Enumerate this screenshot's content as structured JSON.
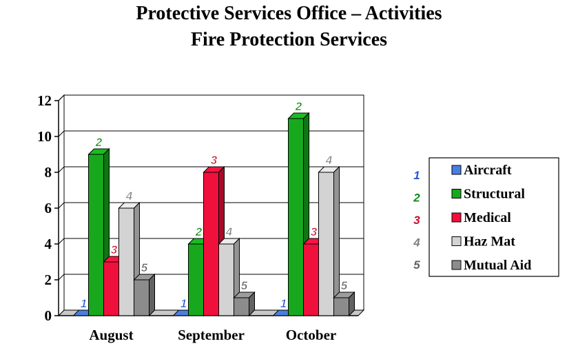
{
  "title": "Protective Services Office – Activities",
  "subtitle": "Fire Protection Services",
  "colors": {
    "background": "#ffffff",
    "grid": "#000000"
  },
  "chart_data": {
    "type": "bar",
    "style": "3d-clustered",
    "categories": [
      "August",
      "September",
      "October"
    ],
    "ylim": [
      0,
      12
    ],
    "yticks": [
      "0",
      "2",
      "4",
      "6",
      "8",
      "10",
      "12"
    ],
    "grid": true,
    "legend_position": "right",
    "series": [
      {
        "name": "Aircraft",
        "marker": "1",
        "color": "#4a7fe0",
        "label_color": "#2b55cc",
        "values": [
          0,
          0,
          0
        ]
      },
      {
        "name": "Structural",
        "marker": "2",
        "color": "#17a81e",
        "label_color": "#128a18",
        "values": [
          9,
          4,
          11
        ]
      },
      {
        "name": "Medical",
        "marker": "3",
        "color": "#f0103c",
        "label_color": "#c8102e",
        "values": [
          3,
          8,
          4
        ]
      },
      {
        "name": "Haz Mat",
        "marker": "4",
        "color": "#d3d3d3",
        "label_color": "#808080",
        "values": [
          6,
          4,
          8
        ]
      },
      {
        "name": "Mutual Aid",
        "marker": "5",
        "color": "#8c8c8c",
        "label_color": "#606060",
        "values": [
          2,
          1,
          1
        ]
      }
    ]
  }
}
